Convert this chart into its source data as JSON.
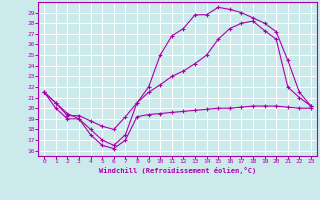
{
  "xlabel": "Windchill (Refroidissement éolien,°C)",
  "bg_color": "#cce9ec",
  "line_color": "#aa00aa",
  "grid_color": "#ffffff",
  "xlim": [
    -0.5,
    23.5
  ],
  "ylim": [
    15.5,
    30.0
  ],
  "xticks": [
    0,
    1,
    2,
    3,
    4,
    5,
    6,
    7,
    8,
    9,
    10,
    11,
    12,
    13,
    14,
    15,
    16,
    17,
    18,
    19,
    20,
    21,
    22,
    23
  ],
  "yticks": [
    16,
    17,
    18,
    19,
    20,
    21,
    22,
    23,
    24,
    25,
    26,
    27,
    28,
    29
  ],
  "curve1_x": [
    0,
    1,
    2,
    3,
    4,
    5,
    6,
    7,
    8,
    9,
    10,
    11,
    12,
    13,
    14,
    15,
    16,
    17,
    18,
    19,
    20,
    21,
    22,
    23
  ],
  "curve1_y": [
    21.5,
    20.0,
    19.0,
    19.0,
    17.5,
    16.5,
    16.2,
    17.0,
    19.2,
    19.4,
    19.5,
    19.6,
    19.7,
    19.8,
    19.9,
    20.0,
    20.0,
    20.1,
    20.2,
    20.2,
    20.2,
    20.1,
    20.0,
    20.0
  ],
  "curve2_x": [
    0,
    1,
    2,
    3,
    4,
    5,
    6,
    7,
    8,
    9,
    10,
    11,
    12,
    13,
    14,
    15,
    16,
    17,
    18,
    19,
    20,
    21,
    22,
    23
  ],
  "curve2_y": [
    21.5,
    20.5,
    19.3,
    19.3,
    18.8,
    18.3,
    18.0,
    19.2,
    20.5,
    21.5,
    22.2,
    23.0,
    23.5,
    24.2,
    25.0,
    26.5,
    27.5,
    28.0,
    28.2,
    27.3,
    26.5,
    22.0,
    21.0,
    20.2
  ],
  "curve3_x": [
    0,
    1,
    2,
    3,
    4,
    5,
    6,
    7,
    8,
    9,
    10,
    11,
    12,
    13,
    14,
    15,
    16,
    17,
    18,
    19,
    20,
    21,
    22,
    23
  ],
  "curve3_y": [
    21.5,
    20.5,
    19.5,
    19.0,
    18.0,
    17.0,
    16.5,
    17.5,
    20.5,
    22.0,
    25.0,
    26.8,
    27.5,
    28.8,
    28.8,
    29.5,
    29.3,
    29.0,
    28.5,
    28.0,
    27.2,
    24.5,
    21.5,
    20.2
  ]
}
